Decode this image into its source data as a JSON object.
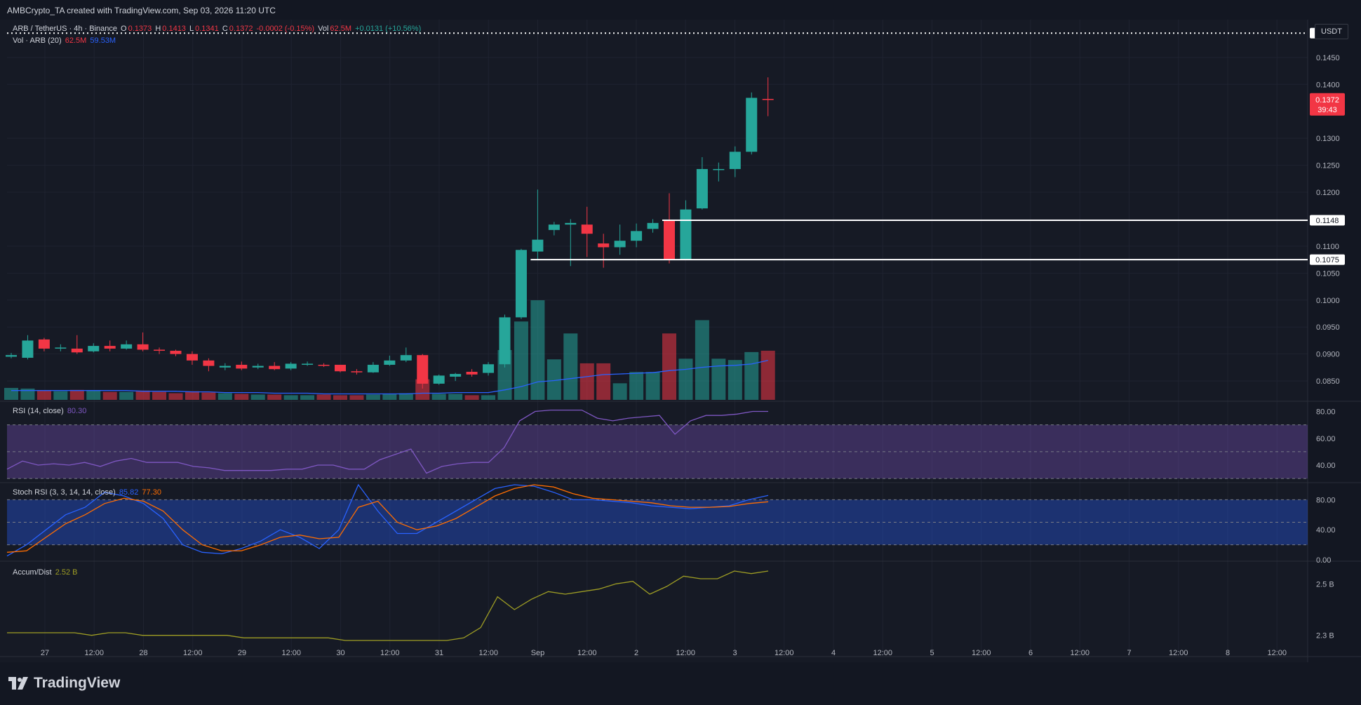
{
  "header": {
    "credit": "AMBCrypto_TA created with TradingView.com, Sep 03, 2026 11:20 UTC"
  },
  "legend": {
    "symbol": "ARB / TetherUS · 4h · Binance",
    "o_label": "O",
    "o": "0.1373",
    "h_label": "H",
    "h": "0.1413",
    "l_label": "L",
    "l": "0.1341",
    "c_label": "C",
    "c": "0.1372",
    "change": "-0.0002 (-0.15%)",
    "vol_label": "Vol",
    "vol": "62.5M",
    "vol_change": "+0.0131 (+10.56%)",
    "volume_study": "Vol · ARB (20)",
    "volume_value": "62.5M",
    "volume_ma": "59.53M",
    "rsi_title": "RSI (14, close)",
    "rsi_value": "80.30",
    "stoch_title": "Stoch RSI (3, 3, 14, 14, close)",
    "stoch_k": "85.82",
    "stoch_d": "77.30",
    "ad_title": "Accum/Dist",
    "ad_value": "2.52 B"
  },
  "price_axis": {
    "currency_button": "USDT",
    "ticks": [
      "0.1450",
      "0.1400",
      "0.1300",
      "0.1250",
      "0.1200",
      "0.1100",
      "0.1050",
      "0.1000",
      "0.0950",
      "0.0900",
      "0.0850"
    ],
    "tick_values": [
      0.145,
      0.14,
      0.13,
      0.125,
      0.12,
      0.11,
      0.105,
      0.1,
      0.095,
      0.09,
      0.085
    ],
    "last_price": "0.1372",
    "countdown": "39:43",
    "dotted_level": {
      "label": "0.1495",
      "value": 0.1495
    },
    "levels": [
      {
        "label": "0.1148",
        "value": 0.1148
      },
      {
        "label": "0.1075",
        "value": 0.1075
      }
    ]
  },
  "rsi_axis": [
    "80.00",
    "60.00",
    "40.00"
  ],
  "stoch_axis": [
    "80.00",
    "40.00",
    "0.00"
  ],
  "ad_axis": [
    "2.5 B",
    "2.3 B"
  ],
  "time_axis": [
    "27",
    "12:00",
    "28",
    "12:00",
    "29",
    "12:00",
    "30",
    "12:00",
    "31",
    "12:00",
    "Sep",
    "12:00",
    "2",
    "12:00",
    "3",
    "12:00",
    "4",
    "12:00",
    "5",
    "12:00",
    "6",
    "12:00",
    "7",
    "12:00",
    "8",
    "12:00"
  ],
  "colors": {
    "up": "#26a69a",
    "down": "#f23645",
    "bg": "#131722",
    "rsi": "#7e57c2",
    "stoch_k": "#2962ff",
    "stoch_d": "#ff6d00",
    "ad": "#9e9d24",
    "vol_ma": "#2962ff"
  },
  "footer": {
    "brand": "TradingView"
  },
  "chart_data": [
    {
      "type": "candlestick",
      "title": "ARB / TetherUS · 4h · Binance",
      "ylim": [
        0.0815,
        0.152
      ],
      "candles": [
        {
          "o": 0.0895,
          "h": 0.0902,
          "l": 0.0892,
          "c": 0.0898
        },
        {
          "o": 0.0893,
          "h": 0.0935,
          "l": 0.089,
          "c": 0.0925
        },
        {
          "o": 0.0927,
          "h": 0.093,
          "l": 0.0905,
          "c": 0.091
        },
        {
          "o": 0.091,
          "h": 0.0918,
          "l": 0.0905,
          "c": 0.0912
        },
        {
          "o": 0.091,
          "h": 0.0935,
          "l": 0.09,
          "c": 0.0903
        },
        {
          "o": 0.0905,
          "h": 0.092,
          "l": 0.0903,
          "c": 0.0915
        },
        {
          "o": 0.0915,
          "h": 0.0925,
          "l": 0.0905,
          "c": 0.091
        },
        {
          "o": 0.091,
          "h": 0.0925,
          "l": 0.0908,
          "c": 0.0918
        },
        {
          "o": 0.0918,
          "h": 0.094,
          "l": 0.0905,
          "c": 0.0908
        },
        {
          "o": 0.0908,
          "h": 0.0912,
          "l": 0.09,
          "c": 0.0906
        },
        {
          "o": 0.0906,
          "h": 0.0908,
          "l": 0.0896,
          "c": 0.09
        },
        {
          "o": 0.09,
          "h": 0.0905,
          "l": 0.088,
          "c": 0.0888
        },
        {
          "o": 0.0888,
          "h": 0.0892,
          "l": 0.0868,
          "c": 0.0878
        },
        {
          "o": 0.0875,
          "h": 0.0883,
          "l": 0.087,
          "c": 0.0878
        },
        {
          "o": 0.088,
          "h": 0.0886,
          "l": 0.087,
          "c": 0.0873
        },
        {
          "o": 0.0875,
          "h": 0.0882,
          "l": 0.0872,
          "c": 0.0878
        },
        {
          "o": 0.0878,
          "h": 0.0885,
          "l": 0.087,
          "c": 0.0872
        },
        {
          "o": 0.0873,
          "h": 0.0885,
          "l": 0.087,
          "c": 0.0882
        },
        {
          "o": 0.088,
          "h": 0.0886,
          "l": 0.0878,
          "c": 0.0882
        },
        {
          "o": 0.088,
          "h": 0.0883,
          "l": 0.0876,
          "c": 0.0879
        },
        {
          "o": 0.088,
          "h": 0.088,
          "l": 0.0866,
          "c": 0.0868
        },
        {
          "o": 0.0868,
          "h": 0.0872,
          "l": 0.0862,
          "c": 0.0866
        },
        {
          "o": 0.0866,
          "h": 0.0885,
          "l": 0.0865,
          "c": 0.088
        },
        {
          "o": 0.088,
          "h": 0.0897,
          "l": 0.0878,
          "c": 0.0888
        },
        {
          "o": 0.0888,
          "h": 0.0912,
          "l": 0.0885,
          "c": 0.0898
        },
        {
          "o": 0.0898,
          "h": 0.09,
          "l": 0.0836,
          "c": 0.0845
        },
        {
          "o": 0.0845,
          "h": 0.0862,
          "l": 0.0843,
          "c": 0.086
        },
        {
          "o": 0.0858,
          "h": 0.0865,
          "l": 0.085,
          "c": 0.0863
        },
        {
          "o": 0.0867,
          "h": 0.0872,
          "l": 0.0858,
          "c": 0.0862
        },
        {
          "o": 0.0865,
          "h": 0.0885,
          "l": 0.086,
          "c": 0.0881
        },
        {
          "o": 0.0881,
          "h": 0.0973,
          "l": 0.0875,
          "c": 0.0968
        },
        {
          "o": 0.0968,
          "h": 0.1095,
          "l": 0.0965,
          "c": 0.1093
        },
        {
          "o": 0.109,
          "h": 0.1205,
          "l": 0.1075,
          "c": 0.1112
        },
        {
          "o": 0.113,
          "h": 0.1145,
          "l": 0.112,
          "c": 0.114
        },
        {
          "o": 0.114,
          "h": 0.115,
          "l": 0.1063,
          "c": 0.1143
        },
        {
          "o": 0.114,
          "h": 0.1173,
          "l": 0.108,
          "c": 0.1123
        },
        {
          "o": 0.1105,
          "h": 0.1123,
          "l": 0.106,
          "c": 0.1098
        },
        {
          "o": 0.1098,
          "h": 0.114,
          "l": 0.1084,
          "c": 0.111
        },
        {
          "o": 0.111,
          "h": 0.1142,
          "l": 0.1098,
          "c": 0.1128
        },
        {
          "o": 0.1132,
          "h": 0.115,
          "l": 0.1125,
          "c": 0.1143
        },
        {
          "o": 0.1148,
          "h": 0.1198,
          "l": 0.1068,
          "c": 0.1075
        },
        {
          "o": 0.1075,
          "h": 0.1185,
          "l": 0.1075,
          "c": 0.1168
        },
        {
          "o": 0.117,
          "h": 0.1265,
          "l": 0.1168,
          "c": 0.1243
        },
        {
          "o": 0.1243,
          "h": 0.1255,
          "l": 0.122,
          "c": 0.1243
        },
        {
          "o": 0.1243,
          "h": 0.1285,
          "l": 0.1228,
          "c": 0.1275
        },
        {
          "o": 0.1275,
          "h": 0.1385,
          "l": 0.127,
          "c": 0.1375
        },
        {
          "o": 0.1373,
          "h": 0.1413,
          "l": 0.1341,
          "c": 0.1372
        }
      ]
    },
    {
      "type": "bar",
      "title": "Vol · ARB (20)",
      "values": [
        18,
        17,
        14,
        13,
        15,
        14,
        12,
        12,
        14,
        12,
        10,
        13,
        11,
        10,
        9,
        8,
        8,
        7,
        7,
        8,
        7,
        7,
        8,
        9,
        10,
        31,
        9,
        9,
        7,
        7,
        75,
        118,
        150,
        61,
        100,
        55,
        55,
        25,
        42,
        42,
        100,
        62,
        120,
        62,
        60,
        72,
        74
      ],
      "ma": [
        14,
        14,
        14,
        14,
        14,
        14,
        14,
        14,
        13,
        13,
        13,
        12,
        12,
        11,
        11,
        11,
        10,
        10,
        10,
        9,
        9,
        9,
        9,
        9,
        9,
        10,
        10,
        11,
        11,
        11,
        15,
        20,
        27,
        29,
        32,
        35,
        38,
        39,
        40,
        41,
        44,
        46,
        49,
        51,
        52,
        54,
        59.5
      ]
    },
    {
      "type": "line",
      "title": "RSI (14, close)",
      "ylim": [
        28,
        86
      ],
      "values": [
        37,
        43,
        40,
        41,
        40,
        42,
        39,
        43,
        45,
        42,
        42,
        42,
        39,
        38,
        36,
        36,
        36,
        36,
        37,
        37,
        40,
        40,
        37,
        37,
        44,
        48,
        52,
        34,
        39,
        41,
        42,
        42,
        53,
        73,
        80,
        81,
        81,
        81,
        75,
        73,
        75,
        76,
        77,
        63,
        73,
        77,
        77,
        78,
        80,
        80
      ]
    },
    {
      "type": "line",
      "title": "Stoch RSI (3, 3, 14, 14, close)",
      "ylim": [
        0,
        100
      ],
      "series": [
        {
          "name": "K",
          "values": [
            5,
            20,
            40,
            60,
            70,
            90,
            85,
            75,
            55,
            20,
            10,
            8,
            15,
            25,
            40,
            30,
            15,
            40,
            100,
            65,
            35,
            35,
            50,
            65,
            80,
            95,
            100,
            98,
            90,
            80,
            80,
            78,
            76,
            72,
            70,
            68,
            70,
            72,
            80,
            85.8
          ]
        },
        {
          "name": "D",
          "values": [
            10,
            12,
            30,
            48,
            60,
            75,
            82,
            78,
            65,
            40,
            20,
            12,
            12,
            20,
            30,
            33,
            28,
            30,
            70,
            78,
            50,
            40,
            45,
            55,
            70,
            85,
            95,
            100,
            97,
            88,
            82,
            80,
            78,
            76,
            72,
            70,
            70,
            71,
            75,
            77.3
          ]
        }
      ]
    },
    {
      "type": "line",
      "title": "Accum/Dist",
      "ylim": [
        2.22,
        2.58
      ],
      "values": [
        2.31,
        2.31,
        2.31,
        2.31,
        2.31,
        2.3,
        2.31,
        2.31,
        2.3,
        2.3,
        2.3,
        2.3,
        2.3,
        2.3,
        2.29,
        2.29,
        2.29,
        2.29,
        2.29,
        2.29,
        2.28,
        2.28,
        2.28,
        2.28,
        2.28,
        2.28,
        2.28,
        2.29,
        2.33,
        2.45,
        2.4,
        2.44,
        2.47,
        2.46,
        2.47,
        2.48,
        2.5,
        2.51,
        2.46,
        2.49,
        2.53,
        2.52,
        2.52,
        2.55,
        2.54,
        2.55
      ]
    }
  ]
}
